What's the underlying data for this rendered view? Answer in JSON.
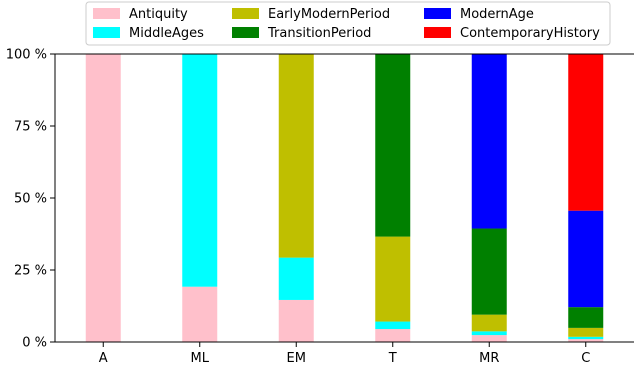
{
  "chart_data": {
    "type": "bar",
    "stacked": true,
    "normalized_percent": true,
    "categories": [
      "A",
      "ML",
      "EM",
      "T",
      "MR",
      "C"
    ],
    "series": [
      {
        "name": "Antiquity",
        "color": "#ffc0cb",
        "values": [
          100,
          19.2,
          14.6,
          4.5,
          2.4,
          1.0
        ]
      },
      {
        "name": "MiddleAges",
        "color": "#00ffff",
        "values": [
          0,
          80.8,
          14.7,
          2.6,
          1.3,
          0.8
        ]
      },
      {
        "name": "EarlyModernPeriod",
        "color": "#bfbf00",
        "values": [
          0,
          0,
          70.7,
          29.5,
          5.8,
          3.1
        ]
      },
      {
        "name": "TransitionPeriod",
        "color": "#008000",
        "values": [
          0,
          0,
          0,
          63.4,
          29.9,
          7.2
        ]
      },
      {
        "name": "ModernAge",
        "color": "#0000ff",
        "values": [
          0,
          0,
          0,
          0,
          60.6,
          33.5
        ]
      },
      {
        "name": "ContemporaryHistory",
        "color": "#ff0000",
        "values": [
          0,
          0,
          0,
          0,
          0,
          54.4
        ]
      }
    ],
    "y_ticks": [
      "0 %",
      "25 %",
      "50 %",
      "75 %",
      "100 %"
    ],
    "ylim": [
      0,
      100
    ],
    "legend_placement": "top-center",
    "grid": false
  }
}
